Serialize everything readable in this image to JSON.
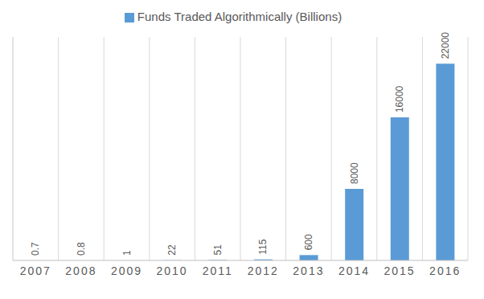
{
  "chart_data": {
    "type": "bar",
    "categories": [
      "2007",
      "2008",
      "2009",
      "2010",
      "2011",
      "2012",
      "2013",
      "2014",
      "2015",
      "2016"
    ],
    "series": [
      {
        "name": "Funds Traded Algorithmically  (Billions)",
        "color": "#5b9bd5",
        "values": [
          0.7,
          0.8,
          1,
          22,
          51,
          115,
          600,
          8000,
          16000,
          22000
        ]
      }
    ],
    "ylim": [
      0,
      25000
    ],
    "grid": true,
    "legend": "top",
    "data_labels": true,
    "tick_labels": "x"
  }
}
